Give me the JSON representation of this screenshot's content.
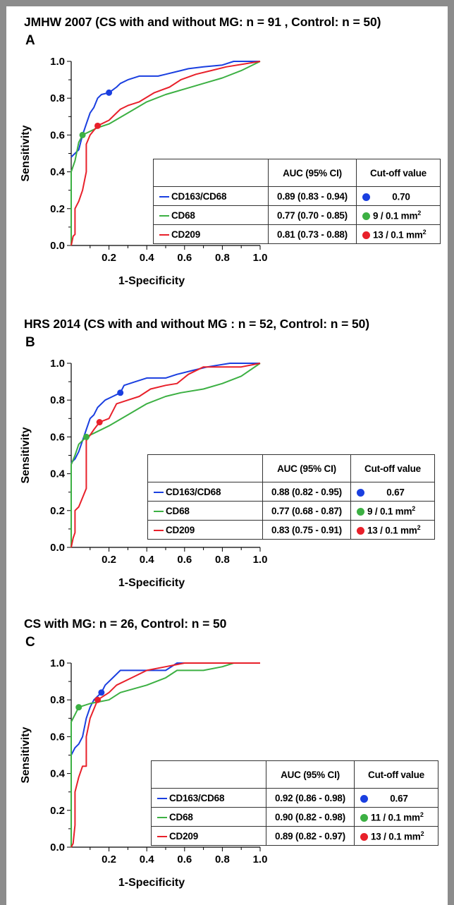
{
  "colors": {
    "CD163/CD68": "#1a3fe0",
    "CD68": "#3cb043",
    "CD209": "#e8202a"
  },
  "legend_header": {
    "auc": "AUC (95% CI)",
    "cutoff": "Cut-off value"
  },
  "chart_data": [
    {
      "type": "line",
      "panel": "A",
      "title": "JMHW 2007 (CS with and without MG: n = 91  , Control: n = 50)",
      "xlabel": "1-Specificity",
      "ylabel": "Sensitivity",
      "xlim": [
        0,
        1
      ],
      "ylim": [
        0,
        1
      ],
      "xticks": [
        "0.2",
        "0.4",
        "0.6",
        "0.8",
        "1.0"
      ],
      "yticks": [
        "0.0",
        "0.2",
        "0.4",
        "0.6",
        "0.8",
        "1.0"
      ],
      "series": [
        {
          "name": "CD163/CD68",
          "auc": "0.89 (0.83 - 0.94)",
          "cutoff": "0.70",
          "cutoff_unit": "",
          "cut_point": [
            0.2,
            0.83
          ],
          "points": [
            [
              0,
              0.48
            ],
            [
              0.02,
              0.5
            ],
            [
              0.04,
              0.52
            ],
            [
              0.06,
              0.6
            ],
            [
              0.08,
              0.66
            ],
            [
              0.1,
              0.72
            ],
            [
              0.12,
              0.75
            ],
            [
              0.14,
              0.8
            ],
            [
              0.16,
              0.82
            ],
            [
              0.2,
              0.83
            ],
            [
              0.24,
              0.86
            ],
            [
              0.26,
              0.88
            ],
            [
              0.3,
              0.9
            ],
            [
              0.36,
              0.92
            ],
            [
              0.46,
              0.92
            ],
            [
              0.5,
              0.93
            ],
            [
              0.58,
              0.95
            ],
            [
              0.62,
              0.96
            ],
            [
              0.7,
              0.97
            ],
            [
              0.8,
              0.98
            ],
            [
              0.86,
              1.0
            ],
            [
              1.0,
              1.0
            ]
          ]
        },
        {
          "name": "CD68",
          "auc": "0.77 (0.70 - 0.85)",
          "cutoff": "9 / 0.1 mm",
          "cutoff_unit": "2",
          "cut_point": [
            0.06,
            0.6
          ],
          "points": [
            [
              0,
              0.0
            ],
            [
              0,
              0.4
            ],
            [
              0.02,
              0.46
            ],
            [
              0.04,
              0.56
            ],
            [
              0.06,
              0.6
            ],
            [
              0.1,
              0.62
            ],
            [
              0.14,
              0.64
            ],
            [
              0.2,
              0.66
            ],
            [
              0.3,
              0.72
            ],
            [
              0.4,
              0.78
            ],
            [
              0.5,
              0.82
            ],
            [
              0.6,
              0.85
            ],
            [
              0.7,
              0.88
            ],
            [
              0.8,
              0.91
            ],
            [
              0.9,
              0.95
            ],
            [
              1.0,
              1.0
            ]
          ]
        },
        {
          "name": "CD209",
          "auc": "0.81 (0.73 - 0.88)",
          "cutoff": "13 / 0.1 mm",
          "cutoff_unit": "2",
          "cut_point": [
            0.14,
            0.65
          ],
          "points": [
            [
              0,
              0.0
            ],
            [
              0.01,
              0.05
            ],
            [
              0.02,
              0.06
            ],
            [
              0.02,
              0.2
            ],
            [
              0.04,
              0.24
            ],
            [
              0.06,
              0.3
            ],
            [
              0.08,
              0.4
            ],
            [
              0.08,
              0.55
            ],
            [
              0.1,
              0.6
            ],
            [
              0.14,
              0.65
            ],
            [
              0.2,
              0.68
            ],
            [
              0.26,
              0.74
            ],
            [
              0.3,
              0.76
            ],
            [
              0.36,
              0.78
            ],
            [
              0.44,
              0.83
            ],
            [
              0.52,
              0.86
            ],
            [
              0.58,
              0.9
            ],
            [
              0.66,
              0.93
            ],
            [
              0.74,
              0.95
            ],
            [
              0.82,
              0.97
            ],
            [
              1.0,
              1.0
            ]
          ]
        }
      ]
    },
    {
      "type": "line",
      "panel": "B",
      "title": "HRS 2014 (CS with and without MG : n =  52, Control: n = 50)",
      "xlabel": "1-Specificity",
      "ylabel": "Sensitivity",
      "xlim": [
        0,
        1
      ],
      "ylim": [
        0,
        1
      ],
      "xticks": [
        "0.2",
        "0.4",
        "0.6",
        "0.8",
        "1.0"
      ],
      "yticks": [
        "0.0",
        "0.2",
        "0.4",
        "0.6",
        "0.8",
        "1.0"
      ],
      "series": [
        {
          "name": "CD163/CD68",
          "auc": "0.88 (0.82 - 0.95)",
          "cutoff": "0.67",
          "cutoff_unit": "",
          "cut_point": [
            0.26,
            0.84
          ],
          "points": [
            [
              0,
              0.46
            ],
            [
              0.02,
              0.48
            ],
            [
              0.04,
              0.52
            ],
            [
              0.06,
              0.58
            ],
            [
              0.08,
              0.64
            ],
            [
              0.1,
              0.7
            ],
            [
              0.12,
              0.72
            ],
            [
              0.14,
              0.76
            ],
            [
              0.18,
              0.8
            ],
            [
              0.22,
              0.82
            ],
            [
              0.26,
              0.84
            ],
            [
              0.28,
              0.88
            ],
            [
              0.34,
              0.9
            ],
            [
              0.4,
              0.92
            ],
            [
              0.5,
              0.92
            ],
            [
              0.56,
              0.94
            ],
            [
              0.64,
              0.96
            ],
            [
              0.72,
              0.98
            ],
            [
              0.84,
              1.0
            ],
            [
              1.0,
              1.0
            ]
          ]
        },
        {
          "name": "CD68",
          "auc": "0.77 (0.68 - 0.87)",
          "cutoff": "9 / 0.1 mm",
          "cutoff_unit": "2",
          "cut_point": [
            0.08,
            0.6
          ],
          "points": [
            [
              0,
              0.0
            ],
            [
              0,
              0.45
            ],
            [
              0.02,
              0.5
            ],
            [
              0.04,
              0.56
            ],
            [
              0.08,
              0.6
            ],
            [
              0.12,
              0.62
            ],
            [
              0.2,
              0.66
            ],
            [
              0.3,
              0.72
            ],
            [
              0.4,
              0.78
            ],
            [
              0.5,
              0.82
            ],
            [
              0.58,
              0.84
            ],
            [
              0.7,
              0.86
            ],
            [
              0.8,
              0.89
            ],
            [
              0.9,
              0.93
            ],
            [
              1.0,
              1.0
            ]
          ]
        },
        {
          "name": "CD209",
          "auc": "0.83 (0.75 - 0.91)",
          "cutoff": "13 / 0.1 mm",
          "cutoff_unit": "2",
          "cut_point": [
            0.15,
            0.68
          ],
          "points": [
            [
              0,
              0.0
            ],
            [
              0.01,
              0.05
            ],
            [
              0.02,
              0.08
            ],
            [
              0.02,
              0.2
            ],
            [
              0.04,
              0.22
            ],
            [
              0.06,
              0.27
            ],
            [
              0.08,
              0.32
            ],
            [
              0.08,
              0.58
            ],
            [
              0.12,
              0.64
            ],
            [
              0.15,
              0.68
            ],
            [
              0.2,
              0.7
            ],
            [
              0.24,
              0.78
            ],
            [
              0.3,
              0.8
            ],
            [
              0.36,
              0.82
            ],
            [
              0.42,
              0.86
            ],
            [
              0.5,
              0.88
            ],
            [
              0.56,
              0.89
            ],
            [
              0.62,
              0.94
            ],
            [
              0.7,
              0.98
            ],
            [
              0.9,
              0.98
            ],
            [
              1.0,
              1.0
            ]
          ]
        }
      ]
    },
    {
      "type": "line",
      "panel": "C",
      "title": "CS with MG: n =  26, Control: n = 50",
      "xlabel": "1-Specificity",
      "ylabel": "Sensitivity",
      "xlim": [
        0,
        1
      ],
      "ylim": [
        0,
        1
      ],
      "xticks": [
        "0.2",
        "0.4",
        "0.6",
        "0.8",
        "1.0"
      ],
      "yticks": [
        "0.0",
        "0.2",
        "0.4",
        "0.6",
        "0.8",
        "1.0"
      ],
      "series": [
        {
          "name": "CD163/CD68",
          "auc": "0.92 (0.86 - 0.98)",
          "cutoff": "0.67",
          "cutoff_unit": "",
          "cut_point": [
            0.16,
            0.84
          ],
          "points": [
            [
              0,
              0.5
            ],
            [
              0.02,
              0.54
            ],
            [
              0.04,
              0.56
            ],
            [
              0.06,
              0.6
            ],
            [
              0.08,
              0.7
            ],
            [
              0.1,
              0.76
            ],
            [
              0.12,
              0.8
            ],
            [
              0.16,
              0.84
            ],
            [
              0.18,
              0.88
            ],
            [
              0.22,
              0.92
            ],
            [
              0.26,
              0.96
            ],
            [
              0.4,
              0.96
            ],
            [
              0.5,
              0.96
            ],
            [
              0.56,
              1.0
            ],
            [
              1.0,
              1.0
            ]
          ]
        },
        {
          "name": "CD68",
          "auc": "0.90 (0.82 - 0.98)",
          "cutoff": "11 / 0.1 mm",
          "cutoff_unit": "2",
          "cut_point": [
            0.04,
            0.76
          ],
          "points": [
            [
              0,
              0.0
            ],
            [
              0,
              0.68
            ],
            [
              0.02,
              0.72
            ],
            [
              0.04,
              0.76
            ],
            [
              0.1,
              0.78
            ],
            [
              0.2,
              0.8
            ],
            [
              0.26,
              0.84
            ],
            [
              0.4,
              0.88
            ],
            [
              0.5,
              0.92
            ],
            [
              0.56,
              0.96
            ],
            [
              0.7,
              0.96
            ],
            [
              0.8,
              0.98
            ],
            [
              0.86,
              1.0
            ],
            [
              1.0,
              1.0
            ]
          ]
        },
        {
          "name": "CD209",
          "auc": "0.89 (0.82 - 0.97)",
          "cutoff": "13 / 0.1 mm",
          "cutoff_unit": "2",
          "cut_point": [
            0.14,
            0.8
          ],
          "points": [
            [
              0,
              0.0
            ],
            [
              0.01,
              0.02
            ],
            [
              0.02,
              0.12
            ],
            [
              0.02,
              0.3
            ],
            [
              0.04,
              0.38
            ],
            [
              0.06,
              0.44
            ],
            [
              0.08,
              0.44
            ],
            [
              0.08,
              0.6
            ],
            [
              0.1,
              0.7
            ],
            [
              0.14,
              0.8
            ],
            [
              0.2,
              0.84
            ],
            [
              0.24,
              0.88
            ],
            [
              0.32,
              0.92
            ],
            [
              0.4,
              0.96
            ],
            [
              0.5,
              0.98
            ],
            [
              0.6,
              1.0
            ],
            [
              1.0,
              1.0
            ]
          ]
        }
      ]
    }
  ]
}
